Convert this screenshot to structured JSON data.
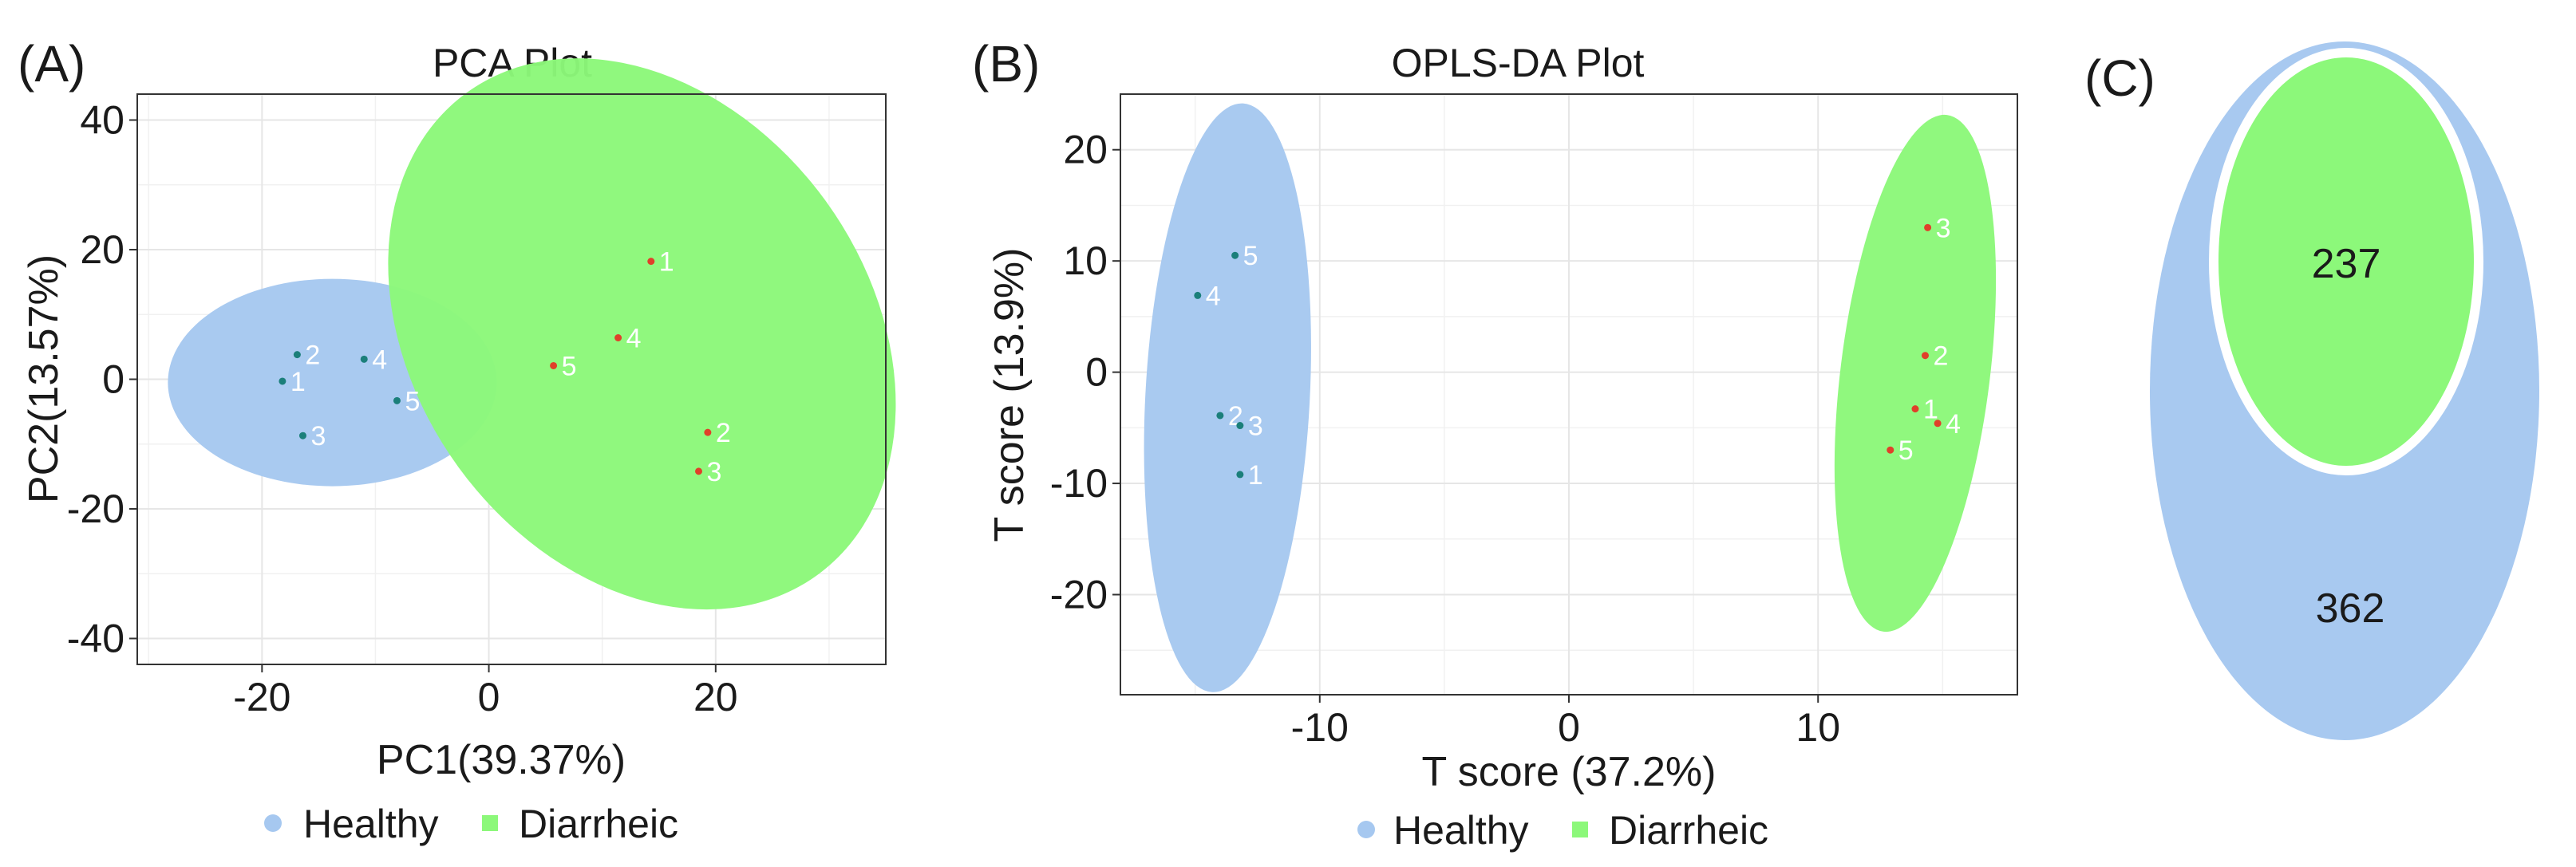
{
  "colors": {
    "healthy": "#a6c8f0",
    "diarrheic": "#8cf87a",
    "healthy_point": "#1b7f7a",
    "diarrheic_point": "#e0402a",
    "venn_outer": "#a8c9f0",
    "venn_inner": "#8cf87a"
  },
  "panel_a": {
    "label": "(A)"
  },
  "panel_b": {
    "label": "(B)"
  },
  "panel_c": {
    "label": "(C)"
  },
  "legend": {
    "healthy": "Healthy",
    "diarrheic": "Diarrheic"
  },
  "chart_data": [
    {
      "type": "scatter",
      "title": "PCA Plot",
      "xlabel": "PC1(39.37%)",
      "ylabel": "PC2(13.57%)",
      "xlim": [
        -31,
        35
      ],
      "ylim": [
        -44,
        44
      ],
      "xticks": [
        -20,
        0,
        20
      ],
      "yticks": [
        -40,
        -20,
        0,
        20,
        40
      ],
      "grid": true,
      "legend_position": "bottom",
      "series": [
        {
          "name": "Healthy",
          "points": [
            {
              "label": "1",
              "x": -18.2,
              "y": -0.3
            },
            {
              "label": "2",
              "x": -16.9,
              "y": 3.8
            },
            {
              "label": "3",
              "x": -16.4,
              "y": -8.7
            },
            {
              "label": "4",
              "x": -11.0,
              "y": 3.1
            },
            {
              "label": "5",
              "x": -8.1,
              "y": -3.3
            }
          ],
          "ellipse": {
            "cx": -13.8,
            "cy": -0.5,
            "rx": 14.5,
            "ry": 16.0,
            "angle": 0
          }
        },
        {
          "name": "Diarrheic",
          "points": [
            {
              "label": "1",
              "x": 14.3,
              "y": 18.2
            },
            {
              "label": "2",
              "x": 19.3,
              "y": -8.2
            },
            {
              "label": "3",
              "x": 18.5,
              "y": -14.2
            },
            {
              "label": "4",
              "x": 11.4,
              "y": 6.4
            },
            {
              "label": "5",
              "x": 5.7,
              "y": 2.1
            }
          ],
          "ellipse": {
            "cx": 13.5,
            "cy": 7.0,
            "rx": 20.0,
            "ry": 46.0,
            "angle": -36
          }
        }
      ]
    },
    {
      "type": "scatter",
      "title": "OPLS-DA Plot",
      "xlabel": "T score (37.2%)",
      "ylabel": "T score (13.9%)",
      "xlim": [
        -18,
        18
      ],
      "ylim": [
        -29,
        25
      ],
      "xticks": [
        -10,
        0,
        10
      ],
      "yticks": [
        -20,
        -10,
        0,
        10,
        20
      ],
      "grid": true,
      "legend_position": "bottom",
      "series": [
        {
          "name": "Healthy",
          "points": [
            {
              "label": "1",
              "x": -13.2,
              "y": -9.2
            },
            {
              "label": "2",
              "x": -14.0,
              "y": -3.9
            },
            {
              "label": "3",
              "x": -13.2,
              "y": -4.8
            },
            {
              "label": "4",
              "x": -14.9,
              "y": 6.9
            },
            {
              "label": "5",
              "x": -13.4,
              "y": 10.5
            }
          ],
          "ellipse": {
            "cx": -13.7,
            "cy": -2.3,
            "rx": 3.3,
            "ry": 26.5,
            "angle": 3
          }
        },
        {
          "name": "Diarrheic",
          "points": [
            {
              "label": "1",
              "x": 13.9,
              "y": -3.3
            },
            {
              "label": "2",
              "x": 14.3,
              "y": 1.5
            },
            {
              "label": "3",
              "x": 14.4,
              "y": 13.0
            },
            {
              "label": "4",
              "x": 14.8,
              "y": -4.6
            },
            {
              "label": "5",
              "x": 12.9,
              "y": -7.0
            }
          ],
          "ellipse": {
            "cx": 13.9,
            "cy": -0.1,
            "rx": 3.0,
            "ry": 23.4,
            "angle": 7
          }
        }
      ]
    },
    {
      "type": "venn",
      "sets": [
        {
          "name": "Healthy",
          "value": 362
        },
        {
          "name": "Diarrheic",
          "value": 237
        }
      ]
    }
  ]
}
